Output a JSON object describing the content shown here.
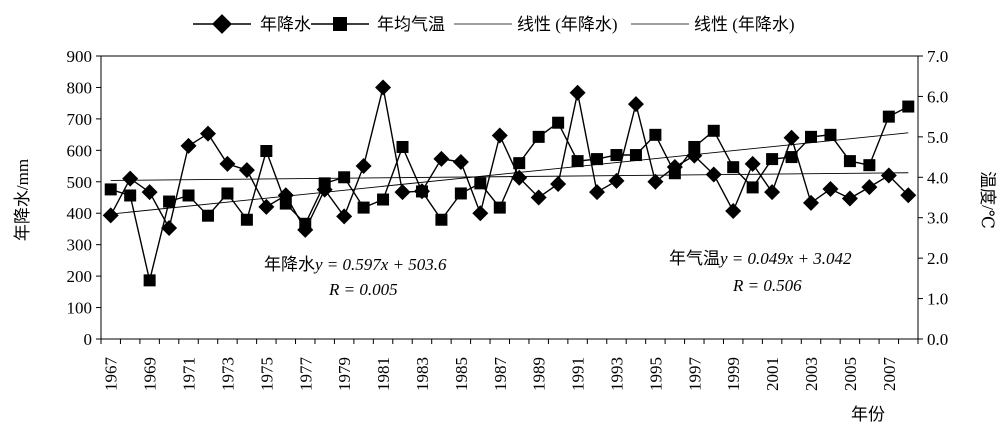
{
  "chart_data": {
    "type": "line",
    "x_label": "年份",
    "y_left_label": "年降水/mm",
    "y_right_label": "温度/℃",
    "y_left_range": [
      0,
      900
    ],
    "y_left_ticks": [
      "0",
      "100",
      "200",
      "300",
      "400",
      "500",
      "600",
      "700",
      "800",
      "900"
    ],
    "y_right_range": [
      0.0,
      7.0
    ],
    "y_right_ticks": [
      "0.0",
      "1.0",
      "2.0",
      "3.0",
      "4.0",
      "5.0",
      "6.0",
      "7.0"
    ],
    "x_range": [
      1967,
      2008
    ],
    "x_tick_labels": [
      "1967",
      "1969",
      "1971",
      "1973",
      "1975",
      "1977",
      "1979",
      "1981",
      "1983",
      "1985",
      "1987",
      "1989",
      "1991",
      "1993",
      "1995",
      "1997",
      "1999",
      "2001",
      "2003",
      "2005",
      "2007"
    ],
    "years": [
      1967,
      1968,
      1969,
      1970,
      1971,
      1972,
      1973,
      1974,
      1975,
      1976,
      1977,
      1978,
      1979,
      1980,
      1981,
      1982,
      1983,
      1984,
      1985,
      1986,
      1987,
      1988,
      1989,
      1990,
      1991,
      1992,
      1993,
      1994,
      1995,
      1996,
      1997,
      1998,
      1999,
      2000,
      2001,
      2002,
      2003,
      2004,
      2005,
      2006,
      2007,
      2008
    ],
    "series": [
      {
        "name": "年降水",
        "axis": "left",
        "marker": "diamond",
        "values": [
          393,
          510,
          467,
          353,
          614,
          653,
          557,
          537,
          420,
          457,
          347,
          475,
          390,
          550,
          800,
          467,
          470,
          573,
          563,
          400,
          647,
          513,
          450,
          493,
          783,
          467,
          503,
          747,
          500,
          547,
          583,
          523,
          407,
          557,
          467,
          640,
          433,
          477,
          447,
          483,
          520,
          457
        ]
      },
      {
        "name": "年均气温",
        "axis": "right",
        "marker": "square",
        "values": [
          3.7,
          3.55,
          1.45,
          3.4,
          3.55,
          3.05,
          3.6,
          2.95,
          4.65,
          3.35,
          2.85,
          3.85,
          4.0,
          3.25,
          3.45,
          4.75,
          3.65,
          2.95,
          3.6,
          3.85,
          3.25,
          4.35,
          5.0,
          5.35,
          4.4,
          4.45,
          4.55,
          4.55,
          5.05,
          4.1,
          4.75,
          5.15,
          4.25,
          3.75,
          4.45,
          4.5,
          5.0,
          5.05,
          4.4,
          4.3,
          5.5,
          5.75
        ]
      }
    ],
    "trendlines": [
      {
        "name": "线性 (年降水)",
        "axis": "left",
        "slope": 0.597,
        "intercept": 503.6
      },
      {
        "name": "线性 (年降水)",
        "axis": "right",
        "slope": 0.049,
        "intercept": 3.042
      }
    ],
    "legend": {
      "position": "top",
      "entries": [
        "年降水",
        "年均气温",
        "线性 (年降水)",
        "线性 (年降水)"
      ]
    },
    "annotations": {
      "precip": {
        "prefix": "年降水",
        "eq": "y = 0.597x + 503.6",
        "r": "R = 0.005"
      },
      "temp": {
        "prefix": "年气温",
        "eq": "y = 0.049x + 3.042",
        "r": "R = 0.506"
      }
    }
  }
}
